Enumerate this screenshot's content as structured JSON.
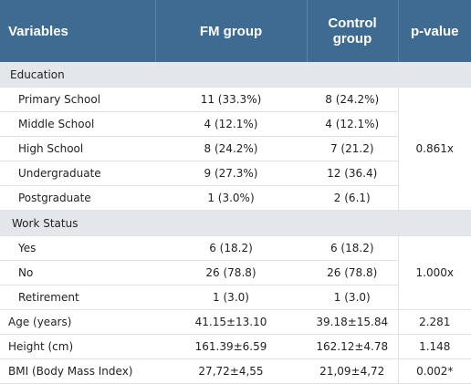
{
  "header": {
    "variables": "Variables",
    "fm_group": "FM group",
    "control_group": "Control group",
    "p_value": "p-value"
  },
  "education": {
    "label": "Education",
    "rows": [
      {
        "name": "Primary School",
        "fm": "11 (33.3%)",
        "control": "8 (24.2%)"
      },
      {
        "name": "Middle School",
        "fm": "4 (12.1%)",
        "control": "4 (12.1%)"
      },
      {
        "name": "High School",
        "fm": "8 (24.2%)",
        "control": "7 (21.2)"
      },
      {
        "name": "Undergraduate",
        "fm": "9 (27.3%)",
        "control": "12 (36.4)"
      },
      {
        "name": "Postgraduate",
        "fm": "1 (3.0%)",
        "control": "2 (6.1)"
      }
    ],
    "p_value": "0.861x"
  },
  "work_status": {
    "label": "Work Status",
    "rows": [
      {
        "name": "Yes",
        "fm": "6 (18.2)",
        "control": "6 (18.2)"
      },
      {
        "name": "No",
        "fm": "26 (78.8)",
        "control": "26 (78.8)"
      },
      {
        "name": "Retirement",
        "fm": "1 (3.0)",
        "control": "1 (3.0)"
      }
    ],
    "p_value": "1.000x"
  },
  "measures": [
    {
      "name": "Age (years)",
      "fm": "41.15±13.10",
      "control": "39.18±15.84",
      "p": "2.281"
    },
    {
      "name": "Height (cm)",
      "fm": "161.39±6.59",
      "control": "162.12±4.78",
      "p": "1.148"
    },
    {
      "name": "BMI (Body Mass Index)",
      "fm": "27,72±4,55",
      "control": "21,09±4,72",
      "p": "0.002*"
    }
  ]
}
